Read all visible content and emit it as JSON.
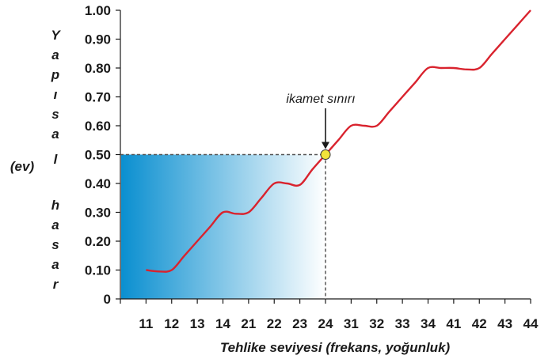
{
  "chart_data": {
    "type": "line",
    "title": "",
    "xlabel": "Tehlike seviyesi (frekans, yoğunluk)",
    "ylabel_letters": [
      "Y",
      "a",
      "p",
      "ı",
      "s",
      "a",
      "l",
      "",
      "h",
      "a",
      "s",
      "a",
      "r"
    ],
    "ylabel_unit": "(ev)",
    "categories": [
      "11",
      "12",
      "13",
      "14",
      "21",
      "22",
      "23",
      "24",
      "31",
      "32",
      "33",
      "34",
      "41",
      "42",
      "43",
      "44"
    ],
    "yticks": [
      "0",
      "0.10",
      "0.20",
      "0.30",
      "0.40",
      "0.50",
      "0.60",
      "0.70",
      "0.80",
      "0.90",
      "1.00"
    ],
    "ylim": [
      0,
      1.0
    ],
    "series": [
      {
        "color": "#d9232e",
        "x": [
          11,
          11.5,
          12,
          12.5,
          13,
          13.5,
          14,
          14.5,
          15,
          15.5,
          16,
          16.5,
          17,
          17.5,
          18,
          18.5,
          19,
          19.5,
          20,
          20.5,
          21,
          21.5,
          22,
          22.5,
          23,
          23.5,
          24,
          24.5,
          25,
          25.5,
          26
        ],
        "y": [
          0.1,
          0.095,
          0.1,
          0.15,
          0.2,
          0.25,
          0.3,
          0.295,
          0.3,
          0.35,
          0.4,
          0.4,
          0.395,
          0.45,
          0.5,
          0.55,
          0.6,
          0.6,
          0.6,
          0.65,
          0.7,
          0.75,
          0.8,
          0.8,
          0.8,
          0.795,
          0.8,
          0.85,
          0.9,
          0.95,
          1.0
        ]
      }
    ],
    "annotation": {
      "label": "ikamet sınırı",
      "point_x": 18,
      "point_y": 0.5,
      "point_color": "#f2e23a"
    },
    "shaded_region": {
      "x_from": 11,
      "x_to": 18,
      "y_to": 0.5,
      "color_from": "#0a8fd0",
      "color_to": "#ffffff"
    }
  }
}
